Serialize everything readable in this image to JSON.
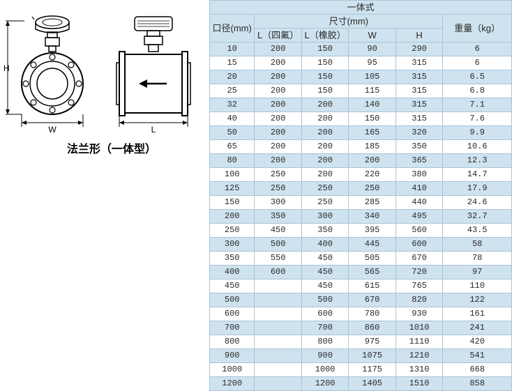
{
  "diagram": {
    "caption": "法兰形（一体型）",
    "labels": {
      "H": "H",
      "W": "W",
      "L": "L"
    },
    "colors": {
      "stroke": "#000000",
      "fill": "#ffffff",
      "arrow": "#000000"
    }
  },
  "table": {
    "title": "一体式",
    "headers": {
      "diameter": "口径(mm)",
      "dimensions": "尺寸(mm)",
      "weight": "重量（kg）",
      "L_ptfe": "L（四氟）",
      "L_rubber": "L（橡胶）",
      "W": "W",
      "H": "H"
    },
    "colors": {
      "header_bg": "#cfe2ef",
      "row_odd_bg": "#cfe2ef",
      "row_even_bg": "#ffffff",
      "border": "#a8c4d8",
      "text": "#2a2a2a"
    },
    "font_size": 12,
    "rows": [
      {
        "dia": "10",
        "l1": "200",
        "l2": "150",
        "w": "90",
        "h": "290",
        "wt": "6"
      },
      {
        "dia": "15",
        "l1": "200",
        "l2": "150",
        "w": "95",
        "h": "315",
        "wt": "6"
      },
      {
        "dia": "20",
        "l1": "200",
        "l2": "150",
        "w": "105",
        "h": "315",
        "wt": "6.5"
      },
      {
        "dia": "25",
        "l1": "200",
        "l2": "150",
        "w": "115",
        "h": "315",
        "wt": "6.8"
      },
      {
        "dia": "32",
        "l1": "200",
        "l2": "200",
        "w": "140",
        "h": "315",
        "wt": "7.1"
      },
      {
        "dia": "40",
        "l1": "200",
        "l2": "200",
        "w": "150",
        "h": "315",
        "wt": "7.6"
      },
      {
        "dia": "50",
        "l1": "200",
        "l2": "200",
        "w": "165",
        "h": "320",
        "wt": "9.9"
      },
      {
        "dia": "65",
        "l1": "200",
        "l2": "200",
        "w": "185",
        "h": "350",
        "wt": "10.6"
      },
      {
        "dia": "80",
        "l1": "200",
        "l2": "200",
        "w": "200",
        "h": "365",
        "wt": "12.3"
      },
      {
        "dia": "100",
        "l1": "250",
        "l2": "200",
        "w": "220",
        "h": "380",
        "wt": "14.7"
      },
      {
        "dia": "125",
        "l1": "250",
        "l2": "250",
        "w": "250",
        "h": "410",
        "wt": "17.9"
      },
      {
        "dia": "150",
        "l1": "300",
        "l2": "250",
        "w": "285",
        "h": "440",
        "wt": "24.6"
      },
      {
        "dia": "200",
        "l1": "350",
        "l2": "300",
        "w": "340",
        "h": "495",
        "wt": "32.7"
      },
      {
        "dia": "250",
        "l1": "450",
        "l2": "350",
        "w": "395",
        "h": "560",
        "wt": "43.5"
      },
      {
        "dia": "300",
        "l1": "500",
        "l2": "400",
        "w": "445",
        "h": "600",
        "wt": "58"
      },
      {
        "dia": "350",
        "l1": "550",
        "l2": "450",
        "w": "505",
        "h": "670",
        "wt": "78"
      },
      {
        "dia": "400",
        "l1": "600",
        "l2": "450",
        "w": "565",
        "h": "720",
        "wt": "97"
      },
      {
        "dia": "450",
        "l1": "",
        "l2": "450",
        "w": "615",
        "h": "765",
        "wt": "110"
      },
      {
        "dia": "500",
        "l1": "",
        "l2": "500",
        "w": "670",
        "h": "820",
        "wt": "122"
      },
      {
        "dia": "600",
        "l1": "",
        "l2": "600",
        "w": "780",
        "h": "930",
        "wt": "161"
      },
      {
        "dia": "700",
        "l1": "",
        "l2": "700",
        "w": "860",
        "h": "1010",
        "wt": "241"
      },
      {
        "dia": "800",
        "l1": "",
        "l2": "800",
        "w": "975",
        "h": "1110",
        "wt": "420"
      },
      {
        "dia": "900",
        "l1": "",
        "l2": "900",
        "w": "1075",
        "h": "1210",
        "wt": "541"
      },
      {
        "dia": "1000",
        "l1": "",
        "l2": "1000",
        "w": "1175",
        "h": "1310",
        "wt": "668"
      },
      {
        "dia": "1200",
        "l1": "",
        "l2": "1200",
        "w": "1405",
        "h": "1510",
        "wt": "858"
      }
    ]
  }
}
